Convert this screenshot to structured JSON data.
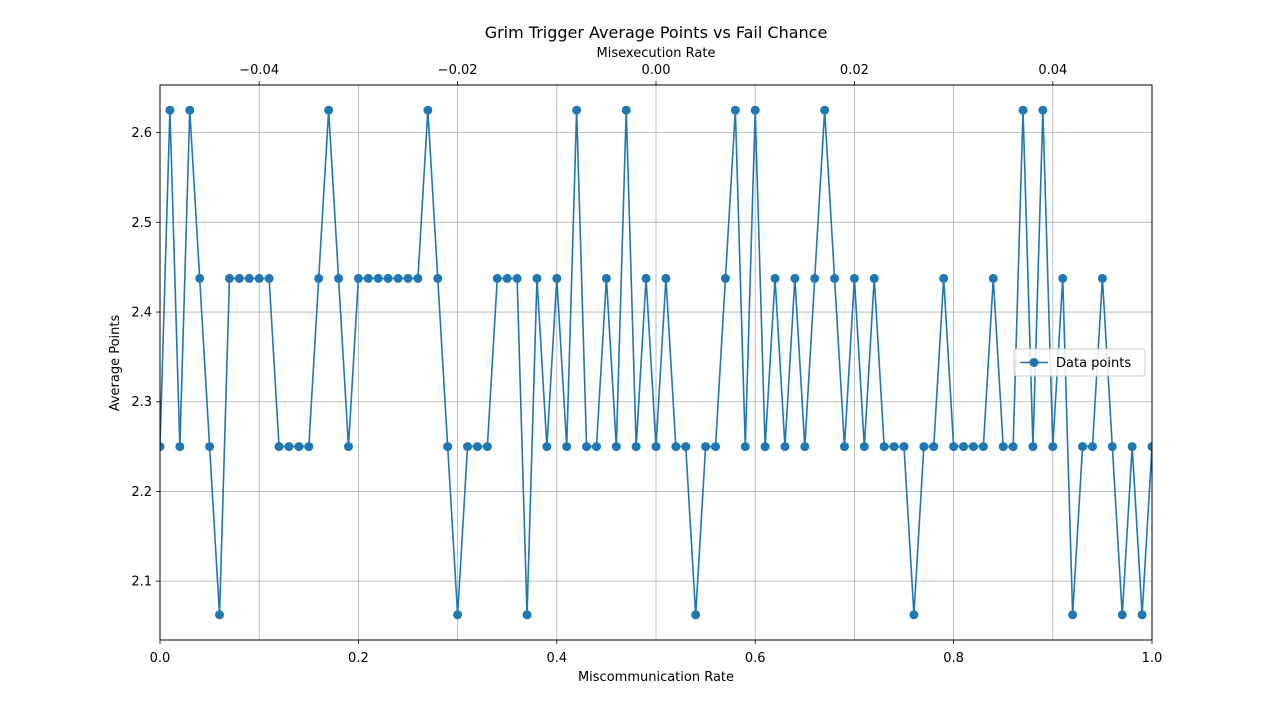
{
  "chart_data": {
    "type": "line",
    "title": "Grim Trigger Average Points vs Fail Chance",
    "xlabel": "Miscommunication Rate",
    "ylabel": "Average Points",
    "x2label": "Misexecution Rate",
    "xlim": [
      0,
      1
    ],
    "ylim": [
      2.0344,
      2.6531
    ],
    "x2lim": [
      -0.05,
      0.05
    ],
    "xticks": [
      0.0,
      0.2,
      0.4,
      0.6,
      0.8,
      1.0
    ],
    "xtick_labels": [
      "0.0",
      "0.2",
      "0.4",
      "0.6",
      "0.8",
      "1.0"
    ],
    "yticks": [
      2.1,
      2.2,
      2.3,
      2.4,
      2.5,
      2.6
    ],
    "ytick_labels": [
      "2.1",
      "2.2",
      "2.3",
      "2.4",
      "2.5",
      "2.6"
    ],
    "x2ticks": [
      -0.04,
      -0.02,
      0.0,
      0.02,
      0.04
    ],
    "x2tick_labels": [
      "−0.04",
      "−0.02",
      "0.00",
      "0.02",
      "0.04"
    ],
    "grid": true,
    "legend_position": "center-right",
    "color": "#1f77b4",
    "series": [
      {
        "name": "Data points",
        "x": [
          0.0,
          0.01,
          0.02,
          0.03,
          0.04,
          0.05,
          0.06,
          0.07,
          0.08,
          0.09,
          0.1,
          0.11,
          0.12,
          0.13,
          0.14,
          0.15,
          0.16,
          0.17,
          0.18,
          0.19,
          0.2,
          0.21,
          0.22,
          0.23,
          0.24,
          0.25,
          0.26,
          0.27,
          0.28,
          0.29,
          0.3,
          0.31,
          0.32,
          0.33,
          0.34,
          0.35,
          0.36,
          0.37,
          0.38,
          0.39,
          0.4,
          0.41,
          0.42,
          0.43,
          0.44,
          0.45,
          0.46,
          0.47,
          0.48,
          0.49,
          0.5,
          0.51,
          0.52,
          0.53,
          0.54,
          0.55,
          0.56,
          0.57,
          0.58,
          0.59,
          0.6,
          0.61,
          0.62,
          0.63,
          0.64,
          0.65,
          0.66,
          0.67,
          0.68,
          0.69,
          0.7,
          0.71,
          0.72,
          0.73,
          0.74,
          0.75,
          0.76,
          0.77,
          0.78,
          0.79,
          0.8,
          0.81,
          0.82,
          0.83,
          0.84,
          0.85,
          0.86,
          0.87,
          0.88,
          0.89,
          0.9,
          0.91,
          0.92,
          0.93,
          0.94,
          0.95,
          0.96,
          0.97,
          0.98,
          0.99,
          1.0
        ],
        "y": [
          2.25,
          2.625,
          2.25,
          2.625,
          2.4375,
          2.25,
          2.0625,
          2.4375,
          2.4375,
          2.4375,
          2.4375,
          2.4375,
          2.25,
          2.25,
          2.25,
          2.25,
          2.4375,
          2.625,
          2.4375,
          2.25,
          2.4375,
          2.4375,
          2.4375,
          2.4375,
          2.4375,
          2.4375,
          2.4375,
          2.625,
          2.4375,
          2.25,
          2.0625,
          2.25,
          2.25,
          2.25,
          2.4375,
          2.4375,
          2.4375,
          2.0625,
          2.4375,
          2.25,
          2.4375,
          2.25,
          2.625,
          2.25,
          2.25,
          2.4375,
          2.25,
          2.625,
          2.25,
          2.4375,
          2.25,
          2.4375,
          2.25,
          2.25,
          2.0625,
          2.25,
          2.25,
          2.4375,
          2.625,
          2.25,
          2.625,
          2.25,
          2.4375,
          2.25,
          2.4375,
          2.25,
          2.4375,
          2.625,
          2.4375,
          2.25,
          2.4375,
          2.25,
          2.4375,
          2.25,
          2.25,
          2.25,
          2.0625,
          2.25,
          2.25,
          2.4375,
          2.25,
          2.25,
          2.25,
          2.25,
          2.4375,
          2.25,
          2.25,
          2.625,
          2.25,
          2.625,
          2.25,
          2.4375,
          2.0625,
          2.25,
          2.25,
          2.4375,
          2.25,
          2.0625,
          2.25,
          2.0625,
          2.25
        ]
      }
    ]
  }
}
